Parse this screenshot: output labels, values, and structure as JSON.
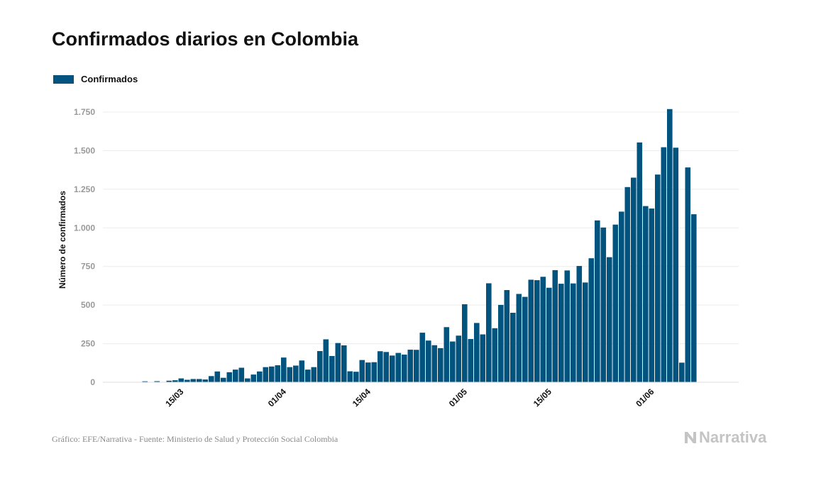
{
  "chart_data": {
    "type": "bar",
    "title": "Confirmados diarios en Colombia",
    "ylabel": "Número de confirmados",
    "xlabel": "",
    "ylim": [
      0,
      1860
    ],
    "yticks": [
      0,
      250,
      500,
      750,
      1000,
      1250,
      1500,
      1750
    ],
    "ytick_labels": [
      "0",
      "250",
      "500",
      "750",
      "1.000",
      "1.250",
      "1.500",
      "1.750"
    ],
    "x_start": "2020-03-06",
    "xticks": [
      "15/03",
      "01/04",
      "15/04",
      "01/05",
      "15/05",
      "01/06"
    ],
    "grid": true,
    "legend_position": "top-left",
    "color": "#03537f",
    "series": [
      {
        "name": "Confirmados",
        "values": [
          1,
          0,
          0,
          6,
          1,
          7,
          0,
          10,
          13,
          25,
          16,
          21,
          21,
          18,
          40,
          70,
          29,
          65,
          82,
          94,
          25,
          50,
          70,
          98,
          102,
          110,
          160,
          98,
          108,
          141,
          82,
          98,
          202,
          278,
          170,
          254,
          239,
          71,
          68,
          144,
          128,
          130,
          201,
          196,
          173,
          190,
          179,
          211,
          210,
          321,
          270,
          240,
          221,
          357,
          264,
          302,
          505,
          280,
          384,
          310,
          641,
          350,
          501,
          597,
          450,
          572,
          553,
          664,
          661,
          683,
          612,
          726,
          638,
          724,
          640,
          753,
          646,
          803,
          1048,
          1002,
          810,
          1021,
          1105,
          1264,
          1325,
          1553,
          1141,
          1125,
          1345,
          1522,
          1769,
          1519,
          127,
          1391,
          1088
        ]
      }
    ]
  },
  "footer": {
    "source": "Gráfico: EFE/Narrativa - Fuente: Ministerio de Salud y Protección Social Colombia",
    "logo_text": "Narrativa"
  }
}
